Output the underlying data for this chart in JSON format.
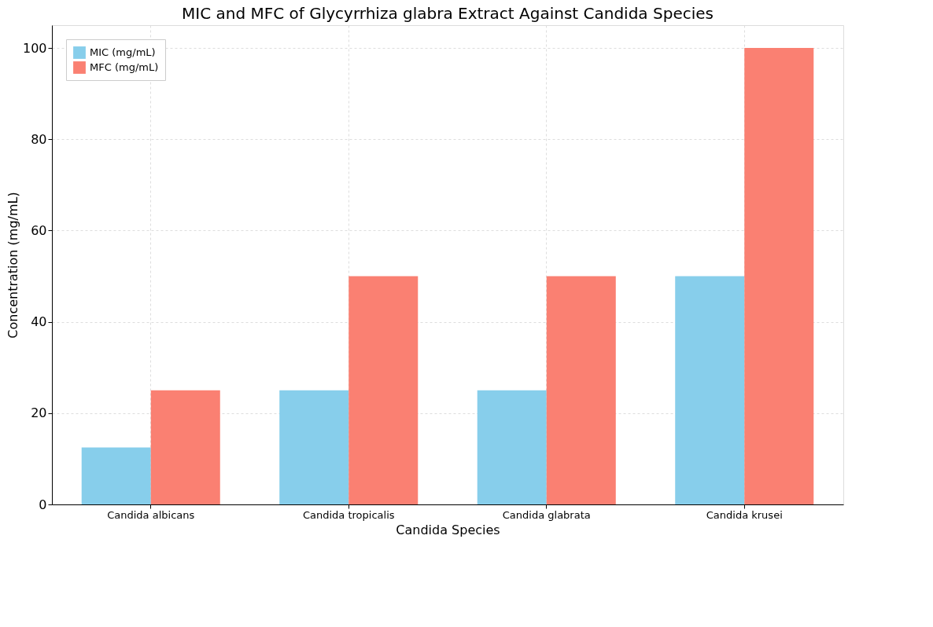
{
  "chart_data": {
    "type": "bar",
    "title": "MIC and MFC of Glycyrrhiza glabra Extract Against Candida Species",
    "xlabel": "Candida Species",
    "ylabel": "Concentration (mg/mL)",
    "categories": [
      "Candida albicans",
      "Candida tropicalis",
      "Candida glabrata",
      "Candida krusei"
    ],
    "series": [
      {
        "name": "MIC (mg/mL)",
        "color": "#87ceeb",
        "values": [
          12.5,
          25,
          25,
          50
        ]
      },
      {
        "name": "MFC (mg/mL)",
        "color": "#fa8072",
        "values": [
          25,
          50,
          50,
          100
        ]
      }
    ],
    "ylim": [
      0,
      105
    ],
    "yticks": [
      0,
      20,
      40,
      60,
      80,
      100
    ],
    "grid": true,
    "legend": "top left"
  }
}
